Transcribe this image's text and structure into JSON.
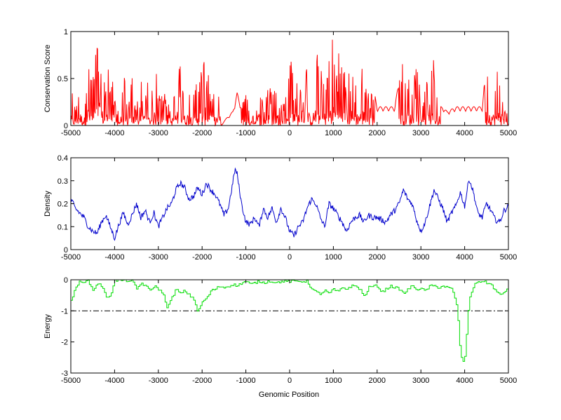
{
  "figure": {
    "xlabel": "Genomic Position"
  },
  "chart_data": [
    {
      "type": "line",
      "panel": "top",
      "ylabel": "Conservation Score",
      "xlim": [
        -5000,
        5000
      ],
      "ylim": [
        0,
        1
      ],
      "xticks": [
        -5000,
        -4000,
        -3000,
        -2000,
        -1000,
        0,
        1000,
        2000,
        3000,
        4000,
        5000
      ],
      "yticks": [
        0,
        0.5,
        1
      ],
      "ytick_labels": [
        "0",
        "0.5",
        "1"
      ],
      "grid": false,
      "legend": "none",
      "series": [
        {
          "color": "#ff0000",
          "style": "spiky",
          "x": [
            -5000,
            -4900,
            -4800,
            -4700,
            -4600,
            -4500,
            -4400,
            -4350,
            -4300,
            -4200,
            -4100,
            -4000,
            -3900,
            -3800,
            -3700,
            -3600,
            -3500,
            -3400,
            -3300,
            -3200,
            -3100,
            -3000,
            -2900,
            -2800,
            -2700,
            -2600,
            -2500,
            -2400,
            -2300,
            -2200,
            -2100,
            -2000,
            -1900,
            -1800,
            -1700,
            -1600,
            -1550,
            -1500,
            -1400,
            -1300,
            -1200,
            -1100,
            -1000,
            -900,
            -800,
            -700,
            -600,
            -500,
            -400,
            -300,
            -200,
            -100,
            0,
            100,
            200,
            300,
            400,
            500,
            600,
            700,
            800,
            900,
            1000,
            1050,
            1100,
            1200,
            1300,
            1400,
            1500,
            1600,
            1700,
            1800,
            1900,
            2000,
            2200,
            2400,
            2600,
            2700,
            2800,
            2900,
            3000,
            3100,
            3200,
            3300,
            3400,
            3500,
            3600,
            3800,
            4000,
            4200,
            4400,
            4500,
            4600,
            4700,
            4800,
            4900,
            5000
          ],
          "y": [
            0.45,
            0.2,
            0.6,
            0.3,
            0.85,
            0.55,
            0.9,
            1.0,
            0.7,
            0.5,
            0.75,
            0.3,
            0.2,
            0.65,
            0.15,
            0.55,
            0.25,
            0.45,
            0.6,
            0.35,
            0.55,
            0.65,
            0.3,
            0.5,
            0.25,
            0.55,
            0.7,
            0.45,
            0.55,
            0.3,
            0.6,
            0.65,
            0.8,
            0.55,
            0.35,
            0.55,
            0.0,
            0.05,
            0.1,
            0.15,
            0.35,
            0.2,
            0.45,
            0.15,
            0.25,
            0.55,
            0.2,
            0.5,
            0.35,
            0.6,
            0.3,
            0.25,
            0.9,
            0.6,
            0.55,
            0.3,
            0.7,
            0.35,
            0.85,
            0.6,
            0.55,
            0.75,
            1.0,
            0.8,
            0.9,
            0.65,
            0.55,
            0.7,
            0.5,
            0.6,
            0.7,
            0.35,
            0.45,
            0.2,
            0.2,
            0.2,
            0.75,
            0.6,
            0.45,
            0.75,
            0.3,
            0.55,
            0.45,
            0.75,
            0.2,
            0.2,
            0.15,
            0.2,
            0.2,
            0.2,
            0.2,
            0.7,
            0.6,
            0.45,
            0.8,
            0.25,
            0.15
          ]
        }
      ]
    },
    {
      "type": "line",
      "panel": "middle",
      "ylabel": "Density",
      "xlim": [
        -5000,
        5000
      ],
      "ylim": [
        0,
        0.4
      ],
      "xticks": [
        -5000,
        -4000,
        -3000,
        -2000,
        -1000,
        0,
        1000,
        2000,
        3000,
        4000,
        5000
      ],
      "yticks": [
        0,
        0.1,
        0.2,
        0.3,
        0.4
      ],
      "ytick_labels": [
        "0",
        "0.1",
        "0.2",
        "0.3",
        "0.4"
      ],
      "grid": false,
      "legend": "none",
      "series": [
        {
          "color": "#0000cc",
          "style": "noisy",
          "x": [
            -5000,
            -4900,
            -4800,
            -4700,
            -4600,
            -4500,
            -4400,
            -4300,
            -4200,
            -4100,
            -4000,
            -3900,
            -3800,
            -3700,
            -3600,
            -3500,
            -3400,
            -3300,
            -3200,
            -3100,
            -3000,
            -2900,
            -2800,
            -2700,
            -2600,
            -2500,
            -2400,
            -2300,
            -2200,
            -2100,
            -2000,
            -1900,
            -1800,
            -1700,
            -1600,
            -1500,
            -1400,
            -1300,
            -1250,
            -1200,
            -1100,
            -1000,
            -900,
            -800,
            -700,
            -600,
            -500,
            -400,
            -300,
            -200,
            -100,
            0,
            100,
            200,
            300,
            400,
            500,
            600,
            700,
            800,
            900,
            1000,
            1100,
            1200,
            1300,
            1400,
            1500,
            1600,
            1700,
            1800,
            1900,
            2000,
            2100,
            2200,
            2300,
            2400,
            2500,
            2600,
            2700,
            2800,
            2900,
            3000,
            3100,
            3200,
            3300,
            3400,
            3500,
            3600,
            3700,
            3800,
            3900,
            4000,
            4100,
            4200,
            4300,
            4400,
            4500,
            4600,
            4700,
            4800,
            4900,
            5000
          ],
          "y": [
            0.22,
            0.18,
            0.16,
            0.14,
            0.1,
            0.08,
            0.07,
            0.12,
            0.15,
            0.1,
            0.05,
            0.11,
            0.16,
            0.11,
            0.15,
            0.2,
            0.14,
            0.17,
            0.12,
            0.16,
            0.1,
            0.14,
            0.18,
            0.2,
            0.26,
            0.29,
            0.27,
            0.22,
            0.23,
            0.27,
            0.24,
            0.29,
            0.26,
            0.24,
            0.2,
            0.15,
            0.18,
            0.29,
            0.35,
            0.33,
            0.2,
            0.12,
            0.11,
            0.14,
            0.1,
            0.18,
            0.14,
            0.18,
            0.12,
            0.18,
            0.14,
            0.08,
            0.06,
            0.1,
            0.12,
            0.18,
            0.22,
            0.2,
            0.14,
            0.1,
            0.2,
            0.18,
            0.15,
            0.12,
            0.08,
            0.12,
            0.14,
            0.15,
            0.12,
            0.15,
            0.14,
            0.14,
            0.13,
            0.12,
            0.15,
            0.17,
            0.2,
            0.26,
            0.22,
            0.2,
            0.13,
            0.08,
            0.12,
            0.19,
            0.26,
            0.22,
            0.18,
            0.12,
            0.16,
            0.19,
            0.25,
            0.19,
            0.31,
            0.25,
            0.16,
            0.14,
            0.2,
            0.17,
            0.13,
            0.12,
            0.17,
            0.19
          ]
        }
      ]
    },
    {
      "type": "line",
      "panel": "bottom",
      "ylabel": "Energy",
      "xlim": [
        -5000,
        5000
      ],
      "ylim": [
        -3,
        0
      ],
      "xticks": [
        -5000,
        -4000,
        -3000,
        -2000,
        -1000,
        0,
        1000,
        2000,
        3000,
        4000,
        5000
      ],
      "yticks": [
        -3,
        -2,
        -1,
        0
      ],
      "ytick_labels": [
        "-3",
        "-2",
        "-1",
        "0"
      ],
      "grid": false,
      "legend": "none",
      "threshold": -1,
      "series": [
        {
          "color": "#00dd00",
          "style": "step",
          "x": [
            -5000,
            -4900,
            -4800,
            -4700,
            -4600,
            -4500,
            -4400,
            -4300,
            -4200,
            -4100,
            -4000,
            -3900,
            -3800,
            -3700,
            -3600,
            -3500,
            -3400,
            -3300,
            -3200,
            -3100,
            -3000,
            -2900,
            -2800,
            -2700,
            -2600,
            -2500,
            -2400,
            -2300,
            -2200,
            -2100,
            -2000,
            -1900,
            -1800,
            -1700,
            -1600,
            -1500,
            -1400,
            -1300,
            -1200,
            -1100,
            -1000,
            -900,
            -800,
            -700,
            -600,
            -500,
            -400,
            -300,
            -200,
            -100,
            0,
            100,
            200,
            300,
            400,
            500,
            600,
            700,
            800,
            900,
            1000,
            1100,
            1200,
            1300,
            1400,
            1500,
            1600,
            1700,
            1800,
            1900,
            2000,
            2100,
            2200,
            2300,
            2400,
            2500,
            2600,
            2700,
            2800,
            2900,
            3000,
            3100,
            3200,
            3300,
            3400,
            3500,
            3600,
            3700,
            3800,
            3850,
            3900,
            3950,
            4000,
            4050,
            4100,
            4200,
            4300,
            4400,
            4500,
            4600,
            4700,
            4800,
            4900,
            5000
          ],
          "y": [
            -0.65,
            -0.3,
            -0.05,
            -0.05,
            -0.05,
            -0.35,
            -0.1,
            -0.2,
            -0.55,
            -0.5,
            -0.02,
            -0.02,
            -0.02,
            -0.03,
            -0.05,
            -0.3,
            -0.1,
            -0.2,
            -0.35,
            -0.2,
            -0.3,
            -0.45,
            -0.9,
            -0.6,
            -0.3,
            -0.45,
            -0.35,
            -0.5,
            -0.6,
            -1.05,
            -0.7,
            -0.6,
            -0.35,
            -0.3,
            -0.2,
            -0.25,
            -0.2,
            -0.15,
            -0.2,
            -0.1,
            -0.05,
            -0.15,
            -0.1,
            -0.05,
            -0.1,
            -0.05,
            -0.05,
            -0.1,
            -0.05,
            -0.05,
            -0.05,
            -0.05,
            -0.05,
            -0.05,
            -0.05,
            -0.3,
            -0.4,
            -0.45,
            -0.35,
            -0.45,
            -0.3,
            -0.4,
            -0.25,
            -0.3,
            -0.2,
            -0.2,
            -0.3,
            -0.55,
            -0.25,
            -0.2,
            -0.2,
            -0.4,
            -0.3,
            -0.2,
            -0.25,
            -0.3,
            -0.45,
            -0.3,
            -0.2,
            -0.3,
            -0.3,
            -0.35,
            -0.2,
            -0.2,
            -0.25,
            -0.2,
            -0.25,
            -0.3,
            -0.7,
            -1.4,
            -2.4,
            -2.65,
            -2.5,
            -1.5,
            -0.6,
            -0.2,
            -0.05,
            -0.05,
            -0.1,
            -0.15,
            -0.35,
            -0.5,
            -0.4,
            -0.2
          ]
        }
      ]
    }
  ]
}
